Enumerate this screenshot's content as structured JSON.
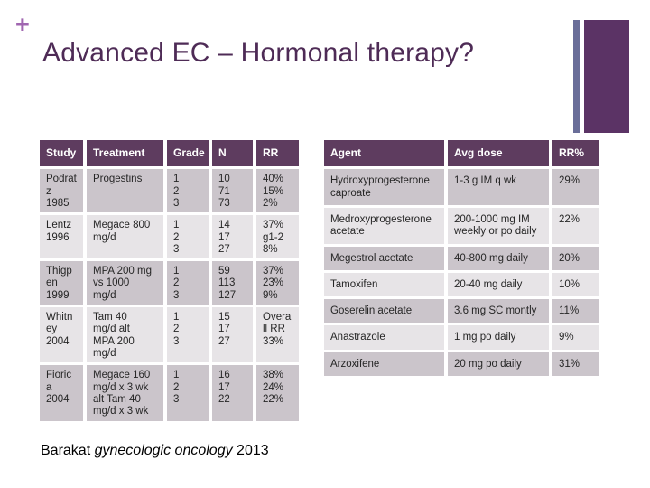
{
  "slide": {
    "plus": "+",
    "title": "Advanced EC – Hormonal therapy?"
  },
  "colors": {
    "table_header_bg": "#5E3C5F",
    "row_band_dark": "#CBC5CB",
    "row_band_light": "#E7E4E7",
    "title_purple": "#4E2B56",
    "plus_purple": "#A066B0",
    "accent_bar_slate": "#6A6E99",
    "accent_bar_purple": "#5B3365"
  },
  "left_table": {
    "headers": [
      "Study",
      "Treatment",
      "Grade",
      "N",
      "RR"
    ],
    "rows": [
      {
        "study": "Podratz\n1985",
        "treatment": "Progestins",
        "grade": "1\n2\n3",
        "n": "10\n71\n73",
        "rr": "40%\n15%\n2%"
      },
      {
        "study": "Lentz\n1996",
        "treatment": "Megace 800\nmg/d",
        "grade": "1\n2\n3",
        "n": "14\n17\n27",
        "rr": "37%\ng1-2\n8%"
      },
      {
        "study": "Thigpen\n1999",
        "treatment": "MPA 200 mg\nvs 1000\nmg/d",
        "grade": "1\n2\n3",
        "n": "59\n113\n127",
        "rr": "37%\n23%\n9%"
      },
      {
        "study": "Whitney\n2004",
        "treatment": "Tam 40\nmg/d alt\nMPA 200\nmg/d",
        "grade": "1\n2\n3",
        "n": "15\n17\n27",
        "rr": "Overall RR 33%"
      },
      {
        "study": "Fiorica\n2004",
        "treatment": "Megace 160\nmg/d x 3 wk\nalt Tam 40\nmg/d x 3 wk",
        "grade": "1\n2\n3",
        "n": "16\n17\n22",
        "rr": "38%\n24%\n22%"
      }
    ]
  },
  "right_table": {
    "headers": [
      "Agent",
      "Avg dose",
      "RR%"
    ],
    "rows": [
      {
        "agent": "Hydroxyprogesterone\ncaproate",
        "dose": "1-3 g IM q wk",
        "rr": "29%"
      },
      {
        "agent": "Medroxyprogesterone\nacetate",
        "dose": "200-1000 mg IM\nweekly or po daily",
        "rr": "22%"
      },
      {
        "agent": "Megestrol acetate",
        "dose": "40-800 mg daily",
        "rr": "20%"
      },
      {
        "agent": "Tamoxifen",
        "dose": "20-40 mg daily",
        "rr": "10%"
      },
      {
        "agent": "Goserelin acetate",
        "dose": "3.6 mg SC montly",
        "rr": "11%"
      },
      {
        "agent": "Anastrazole",
        "dose": "1 mg po daily",
        "rr": "9%"
      },
      {
        "agent": "Arzoxifene",
        "dose": "20 mg po daily",
        "rr": "31%"
      }
    ]
  },
  "citation": {
    "author": "Barakat ",
    "journal": "gynecologic oncology",
    "year": " 2013"
  }
}
